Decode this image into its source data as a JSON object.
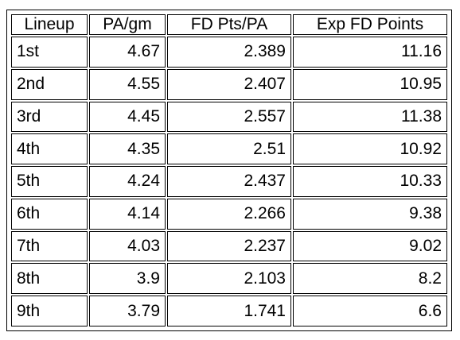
{
  "table": {
    "headers": [
      "Lineup",
      "PA/gm",
      "FD Pts/PA",
      "Exp FD Points"
    ],
    "rows": [
      [
        "1st",
        "4.67",
        "2.389",
        "11.16"
      ],
      [
        "2nd",
        "4.55",
        "2.407",
        "10.95"
      ],
      [
        "3rd",
        "4.45",
        "2.557",
        "11.38"
      ],
      [
        "4th",
        "4.35",
        "2.51",
        "10.92"
      ],
      [
        "5th",
        "4.24",
        "2.437",
        "10.33"
      ],
      [
        "6th",
        "4.14",
        "2.266",
        "9.38"
      ],
      [
        "7th",
        "4.03",
        "2.237",
        "9.02"
      ],
      [
        "8th",
        "3.9",
        "2.103",
        "8.2"
      ],
      [
        "9th",
        "3.79",
        "1.741",
        "6.6"
      ]
    ]
  }
}
